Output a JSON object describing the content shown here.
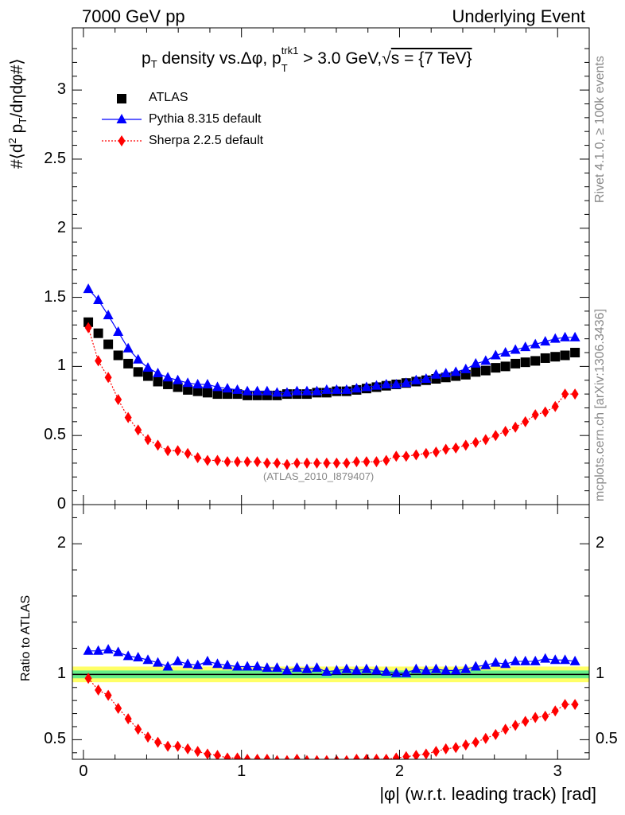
{
  "header": {
    "left": "7000 GeV pp",
    "right": "Underlying Event"
  },
  "side": {
    "rivet": "Rivet 4.1.0, ≥ 100k events",
    "mcplots": "mcplots.cern.ch [arXiv:1306.3436]"
  },
  "colors": {
    "atlas": "#000000",
    "pythia": "#0000ff",
    "sherpa": "#ff0000",
    "band_inner": "#66ee88",
    "band_outer": "#ffff66"
  },
  "chart_data": [
    {
      "type": "scatter",
      "panel": "main",
      "title": "pT density vs.Δφ, pTtrk1 > 3.0 GeV,√s = {7 TeV}",
      "title_parts": {
        "p": "p",
        "T": "T",
        "density": " density vs.Δφ, p",
        "trk1": "trk1",
        "cut": " > 3.0 GeV,",
        "sqrt": "√",
        "energy": "s = {7 TeV}"
      },
      "ylabel": "#⟨d² pT/dηdφ#⟩",
      "ylabel_parts": {
        "prefix": "#⟨d",
        "sq": "2",
        "p": " p",
        "T": "T",
        "suffix": "/dηdφ#⟩"
      },
      "watermark": "(ATLAS_2010_I879407)",
      "xlim": [
        -0.07,
        3.2
      ],
      "ylim": [
        0,
        3.45
      ],
      "yticks": [
        0,
        0.5,
        1,
        1.5,
        2,
        2.5,
        3
      ],
      "ytick_labels": [
        "0",
        "0.5",
        "1",
        "1.5",
        "2",
        "2.5",
        "3"
      ],
      "legend_position": "top-left",
      "x": [
        0.031,
        0.094,
        0.157,
        0.22,
        0.283,
        0.346,
        0.408,
        0.471,
        0.534,
        0.597,
        0.66,
        0.723,
        0.785,
        0.848,
        0.911,
        0.974,
        1.037,
        1.1,
        1.162,
        1.225,
        1.288,
        1.351,
        1.414,
        1.477,
        1.539,
        1.602,
        1.665,
        1.728,
        1.791,
        1.854,
        1.916,
        1.979,
        2.042,
        2.105,
        2.168,
        2.231,
        2.293,
        2.356,
        2.419,
        2.482,
        2.545,
        2.608,
        2.67,
        2.733,
        2.796,
        2.859,
        2.922,
        2.985,
        3.047,
        3.11
      ],
      "series": [
        {
          "name": "ATLAS",
          "marker": "square",
          "values": [
            1.32,
            1.24,
            1.16,
            1.08,
            1.02,
            0.96,
            0.93,
            0.89,
            0.87,
            0.85,
            0.83,
            0.82,
            0.81,
            0.8,
            0.8,
            0.8,
            0.79,
            0.79,
            0.79,
            0.79,
            0.8,
            0.8,
            0.8,
            0.81,
            0.81,
            0.82,
            0.82,
            0.83,
            0.84,
            0.85,
            0.86,
            0.87,
            0.88,
            0.89,
            0.9,
            0.91,
            0.92,
            0.93,
            0.94,
            0.96,
            0.97,
            0.99,
            1.0,
            1.02,
            1.03,
            1.04,
            1.06,
            1.07,
            1.08,
            1.1
          ]
        },
        {
          "name": "Pythia 8.315 default",
          "marker": "triangle",
          "values": [
            1.56,
            1.48,
            1.37,
            1.25,
            1.13,
            1.05,
            0.99,
            0.95,
            0.92,
            0.9,
            0.88,
            0.87,
            0.87,
            0.85,
            0.84,
            0.83,
            0.82,
            0.82,
            0.82,
            0.81,
            0.81,
            0.82,
            0.82,
            0.82,
            0.83,
            0.83,
            0.83,
            0.84,
            0.85,
            0.86,
            0.87,
            0.87,
            0.88,
            0.9,
            0.91,
            0.94,
            0.95,
            0.96,
            0.98,
            1.02,
            1.04,
            1.08,
            1.1,
            1.12,
            1.14,
            1.16,
            1.18,
            1.2,
            1.21,
            1.21
          ]
        },
        {
          "name": "Sherpa 2.2.5 default",
          "marker": "diamond",
          "values": [
            1.28,
            1.04,
            0.92,
            0.76,
            0.63,
            0.54,
            0.47,
            0.43,
            0.39,
            0.39,
            0.37,
            0.34,
            0.32,
            0.32,
            0.31,
            0.31,
            0.31,
            0.31,
            0.3,
            0.3,
            0.29,
            0.3,
            0.3,
            0.3,
            0.3,
            0.3,
            0.3,
            0.31,
            0.31,
            0.31,
            0.32,
            0.35,
            0.35,
            0.36,
            0.37,
            0.38,
            0.4,
            0.41,
            0.43,
            0.45,
            0.47,
            0.5,
            0.53,
            0.56,
            0.6,
            0.65,
            0.67,
            0.71,
            0.8,
            0.8
          ]
        }
      ]
    },
    {
      "type": "scatter",
      "panel": "ratio",
      "ylabel": "Ratio to ATLAS",
      "xlabel": "|φ| (w.r.t. leading track) [rad]",
      "xlim": [
        -0.07,
        3.2
      ],
      "ylim": [
        0.35,
        2.3
      ],
      "yticks": [
        0.5,
        1,
        2
      ],
      "ytick_labels": [
        "0.5",
        "1",
        "2"
      ],
      "xticks": [
        0,
        1,
        2,
        3
      ],
      "xtick_labels": [
        "0",
        "1",
        "2",
        "3"
      ],
      "band_inner": [
        0.97,
        1.03
      ],
      "band_outer": [
        0.94,
        1.06
      ],
      "series": [
        {
          "name": "Pythia 8.315 default",
          "marker": "triangle",
          "values": [
            1.18,
            1.18,
            1.19,
            1.17,
            1.14,
            1.13,
            1.11,
            1.09,
            1.06,
            1.1,
            1.08,
            1.07,
            1.1,
            1.08,
            1.07,
            1.06,
            1.06,
            1.06,
            1.05,
            1.05,
            1.03,
            1.05,
            1.04,
            1.05,
            1.02,
            1.03,
            1.04,
            1.03,
            1.04,
            1.03,
            1.02,
            1.01,
            1.01,
            1.04,
            1.03,
            1.04,
            1.03,
            1.03,
            1.04,
            1.06,
            1.07,
            1.09,
            1.08,
            1.1,
            1.1,
            1.1,
            1.12,
            1.11,
            1.11,
            1.1
          ]
        },
        {
          "name": "Sherpa 2.2.5 default",
          "marker": "diamond",
          "values": [
            0.97,
            0.88,
            0.84,
            0.74,
            0.66,
            0.58,
            0.52,
            0.48,
            0.45,
            0.45,
            0.43,
            0.41,
            0.39,
            0.38,
            0.36,
            0.36,
            0.35,
            0.35,
            0.35,
            0.34,
            0.34,
            0.35,
            0.34,
            0.34,
            0.34,
            0.34,
            0.34,
            0.35,
            0.35,
            0.35,
            0.35,
            0.36,
            0.37,
            0.38,
            0.39,
            0.41,
            0.43,
            0.44,
            0.46,
            0.48,
            0.51,
            0.54,
            0.58,
            0.61,
            0.64,
            0.67,
            0.68,
            0.72,
            0.77,
            0.77
          ]
        }
      ]
    }
  ]
}
